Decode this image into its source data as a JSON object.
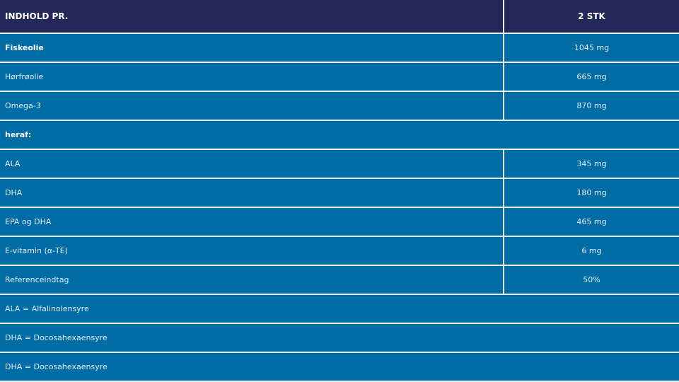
{
  "header": {
    "col1": "INDHOLD PR.",
    "col2": "2 STK"
  },
  "rows": [
    {
      "label": "Fiskeolie",
      "value": "1045 mg",
      "bold": true
    },
    {
      "label": "Hørfrøolie",
      "value": "665 mg"
    },
    {
      "label": "Omega-3",
      "value": "870 mg"
    },
    {
      "label": "heraf:",
      "bold": true,
      "span": true
    },
    {
      "label": "ALA",
      "value": "345 mg"
    },
    {
      "label": "DHA",
      "value": "180 mg"
    },
    {
      "label": "EPA og DHA",
      "value": "465 mg"
    },
    {
      "label": "E-vitamin (α-TE)",
      "value": "6 mg"
    },
    {
      "label": "Referenceindtag",
      "value": "50%"
    }
  ],
  "notes": [
    "ALA = Alfalinolensyre",
    "DHA = Docosahexaensyre",
    "DHA = Docosahexaensyre"
  ],
  "colors": {
    "header_bg": "#232859",
    "row_bg": "#006ca6",
    "border": "#e8f0f6"
  }
}
